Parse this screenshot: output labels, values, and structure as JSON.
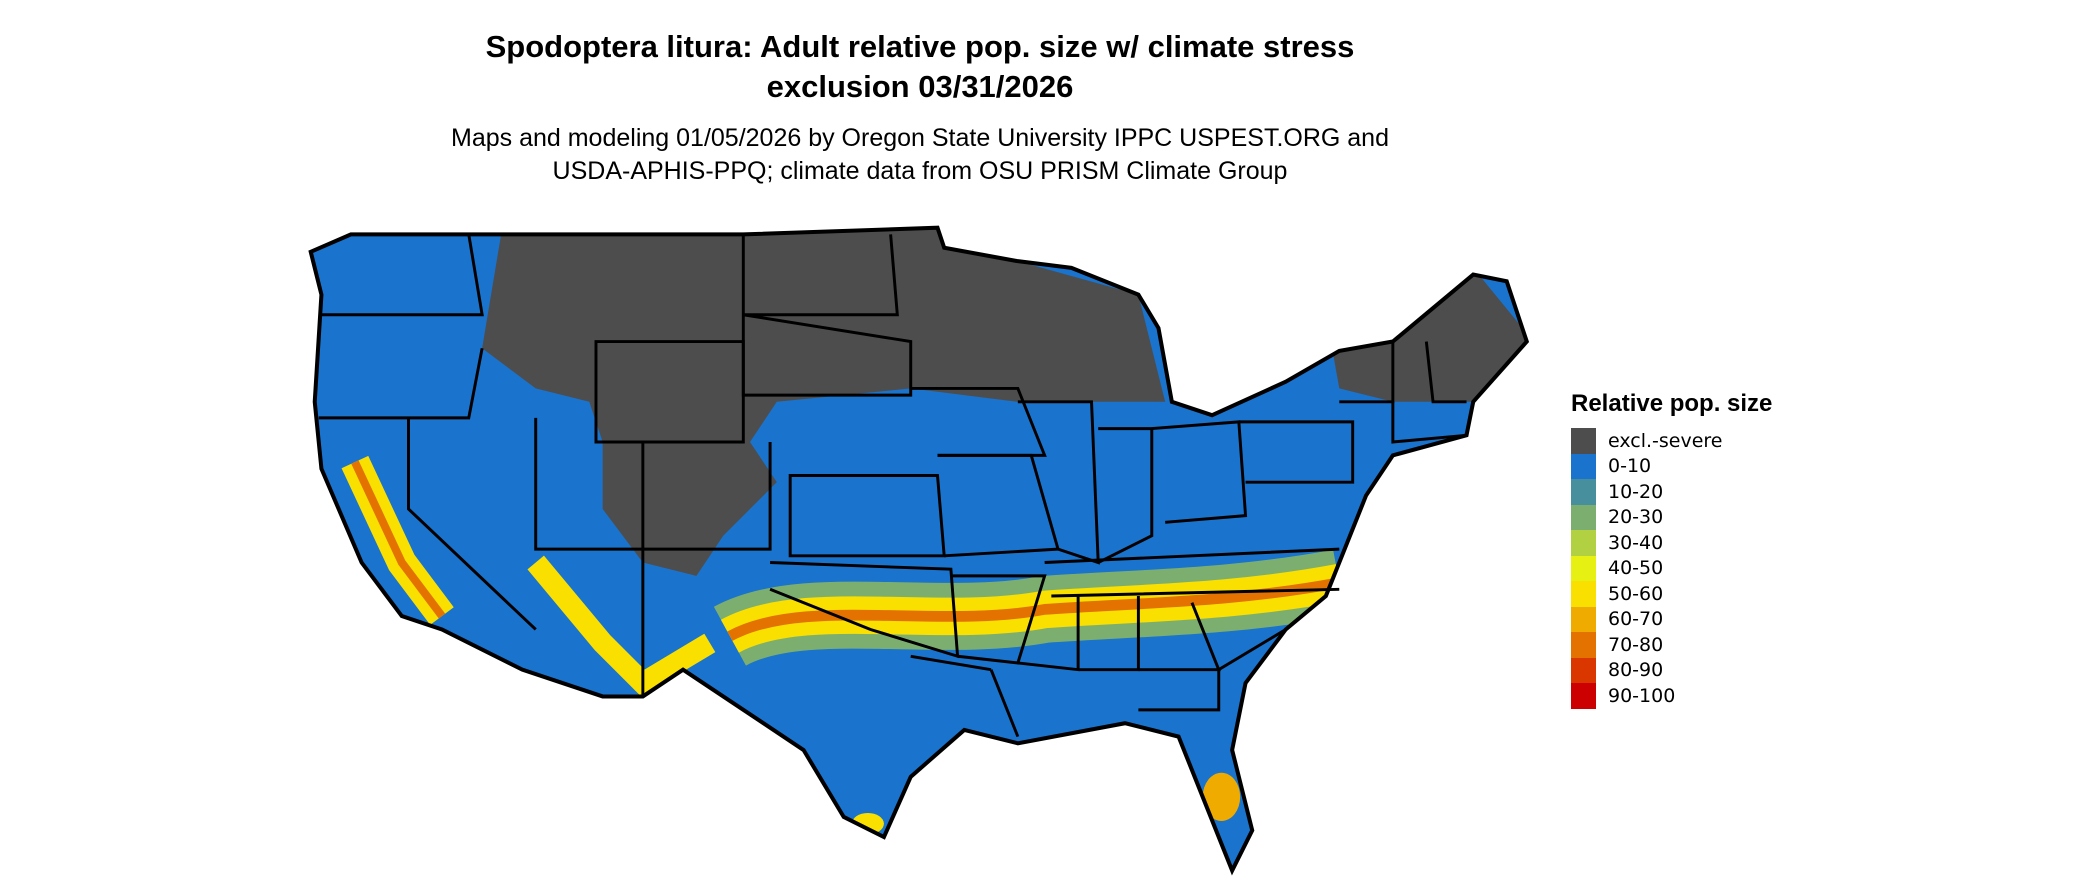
{
  "title": {
    "line1": "Spodoptera litura: Adult relative pop. size w/ climate stress",
    "line2": "exclusion 03/31/2026"
  },
  "subtitle": {
    "line1": "Maps and modeling 01/05/2026 by Oregon State University IPPC USPEST.ORG and",
    "line2": "USDA-APHIS-PPQ; climate data from OSU PRISM Climate Group"
  },
  "legend": {
    "title": "Relative pop. size",
    "items": [
      {
        "label": "excl.-severe",
        "color": "#4d4d4d"
      },
      {
        "label": "0-10",
        "color": "#1a73cc"
      },
      {
        "label": "10-20",
        "color": "#478f9c"
      },
      {
        "label": "20-30",
        "color": "#7caf6f"
      },
      {
        "label": "30-40",
        "color": "#b2d142"
      },
      {
        "label": "40-50",
        "color": "#e6f013"
      },
      {
        "label": "50-60",
        "color": "#f9e000"
      },
      {
        "label": "60-70",
        "color": "#f0ab00"
      },
      {
        "label": "70-80",
        "color": "#e37200"
      },
      {
        "label": "80-90",
        "color": "#d93600"
      },
      {
        "label": "90-100",
        "color": "#cc0000"
      }
    ]
  },
  "map": {
    "region": "Contiguous United States",
    "border_color": "#000000"
  }
}
